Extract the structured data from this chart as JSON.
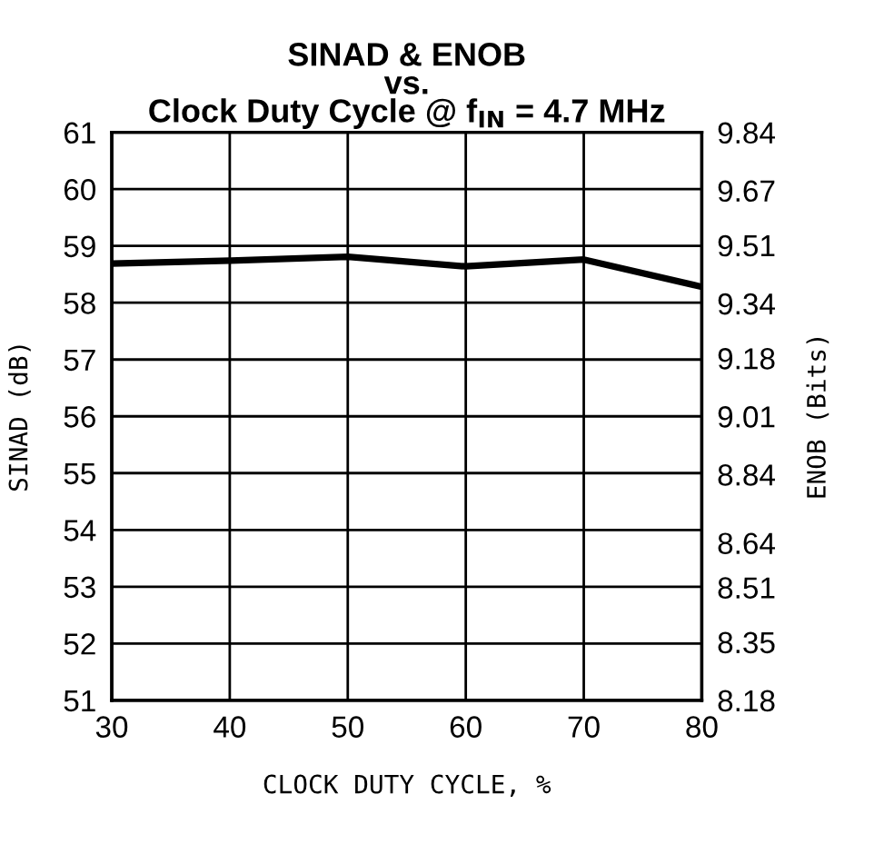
{
  "chart_data": {
    "type": "line",
    "title": "SINAD & ENOB\nvs.\nClock Duty Cycle @ f$_{IN}$ = 4.7 MHz",
    "xlabel": "CLOCK DUTY CYCLE, %",
    "ylabel": "SINAD (dB)",
    "y2label": "ENOB (Bits)",
    "x": [
      30,
      40,
      50,
      60,
      70,
      80
    ],
    "series": [
      {
        "color": "#000000",
        "values": [
          58.69,
          58.74,
          58.81,
          58.64,
          58.76,
          58.28
        ]
      }
    ],
    "xlim": [
      30,
      80
    ],
    "xticks": [
      30,
      40,
      50,
      60,
      70,
      80
    ],
    "ylim": [
      51,
      61
    ],
    "yticks": [
      51,
      52,
      53,
      54,
      55,
      56,
      57,
      58,
      59,
      60,
      61
    ],
    "y2lim": [
      8.18,
      9.84
    ],
    "y2ticks": [
      8.18,
      8.35,
      8.51,
      8.64,
      8.84,
      9.01,
      9.18,
      9.34,
      9.51,
      9.67,
      9.84
    ],
    "grid": true,
    "marker": "none",
    "line_style": "solid"
  }
}
